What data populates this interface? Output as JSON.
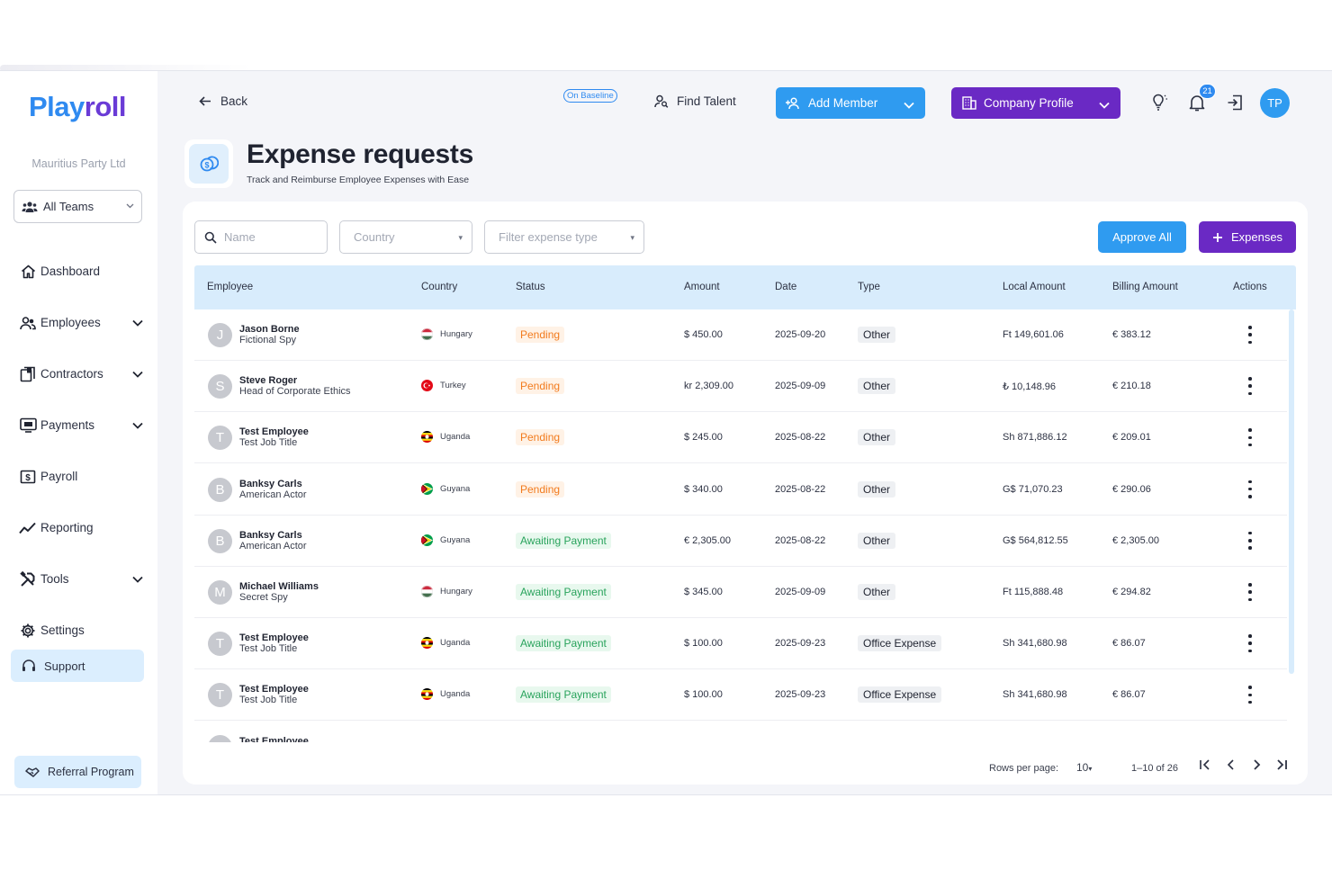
{
  "sidebar": {
    "logo_main": "Play",
    "logo_accent": "roll",
    "company": "Mauritius Party Ltd",
    "team_select": "All Teams",
    "items": [
      {
        "label": "Dashboard",
        "icon": "home-icon",
        "expandable": false
      },
      {
        "label": "Employees",
        "icon": "users-icon",
        "expandable": true
      },
      {
        "label": "Contractors",
        "icon": "contract-icon",
        "expandable": true
      },
      {
        "label": "Payments",
        "icon": "payment-icon",
        "expandable": true
      },
      {
        "label": "Payroll",
        "icon": "payroll-icon",
        "expandable": false
      },
      {
        "label": "Reporting",
        "icon": "chart-line-icon",
        "expandable": false
      },
      {
        "label": "Tools",
        "icon": "tools-icon",
        "expandable": true
      },
      {
        "label": "Settings",
        "icon": "gear-icon",
        "expandable": false
      }
    ],
    "support": "Support",
    "referral": "Referral Program"
  },
  "header": {
    "back": "Back",
    "baseline": "On Baseline",
    "find_talent": "Find Talent",
    "add_member": "Add Member",
    "company_profile": "Company Profile",
    "notifications": "21",
    "avatar": "TP"
  },
  "page": {
    "title": "Expense requests",
    "subtitle": "Track and Reimburse Employee Expenses with Ease"
  },
  "filters": {
    "name_placeholder": "Name",
    "country_placeholder": "Country",
    "type_placeholder": "Filter expense type",
    "approve_all": "Approve All",
    "add_expenses": "Expenses"
  },
  "table": {
    "columns": [
      "Employee",
      "Country",
      "Status",
      "Amount",
      "Date",
      "Type",
      "Local Amount",
      "Billing Amount",
      "Actions"
    ],
    "rows": [
      {
        "initial": "J",
        "name": "Jason Borne",
        "role": "Fictional Spy",
        "country": "Hungary",
        "status": "Pending",
        "amount": "$ 450.00",
        "date": "2025-09-20",
        "type": "Other",
        "local": "Ft 149,601.06",
        "billing": "€ 383.12"
      },
      {
        "initial": "S",
        "name": "Steve Roger",
        "role": "Head of Corporate Ethics",
        "country": "Turkey",
        "status": "Pending",
        "amount": "kr 2,309.00",
        "date": "2025-09-09",
        "type": "Other",
        "local": "₺ 10,148.96",
        "billing": "€ 210.18"
      },
      {
        "initial": "T",
        "name": "Test Employee",
        "role": "Test Job Title",
        "country": "Uganda",
        "status": "Pending",
        "amount": "$ 245.00",
        "date": "2025-08-22",
        "type": "Other",
        "local": "Sh 871,886.12",
        "billing": "€ 209.01"
      },
      {
        "initial": "B",
        "name": "Banksy Carls",
        "role": "American Actor",
        "country": "Guyana",
        "status": "Pending",
        "amount": "$ 340.00",
        "date": "2025-08-22",
        "type": "Other",
        "local": "G$ 71,070.23",
        "billing": "€ 290.06"
      },
      {
        "initial": "B",
        "name": "Banksy Carls",
        "role": "American Actor",
        "country": "Guyana",
        "status": "Awaiting Payment",
        "amount": "€ 2,305.00",
        "date": "2025-08-22",
        "type": "Other",
        "local": "G$ 564,812.55",
        "billing": "€ 2,305.00"
      },
      {
        "initial": "M",
        "name": "Michael Williams",
        "role": "Secret Spy",
        "country": "Hungary",
        "status": "Awaiting Payment",
        "amount": "$ 345.00",
        "date": "2025-09-09",
        "type": "Other",
        "local": "Ft 115,888.48",
        "billing": "€ 294.82"
      },
      {
        "initial": "T",
        "name": "Test Employee",
        "role": "Test Job Title",
        "country": "Uganda",
        "status": "Awaiting Payment",
        "amount": "$ 100.00",
        "date": "2025-09-23",
        "type": "Office Expense",
        "local": "Sh 341,680.98",
        "billing": "€ 86.07"
      },
      {
        "initial": "T",
        "name": "Test Employee",
        "role": "Test Job Title",
        "country": "Uganda",
        "status": "Awaiting Payment",
        "amount": "$ 100.00",
        "date": "2025-09-23",
        "type": "Office Expense",
        "local": "Sh 341,680.98",
        "billing": "€ 86.07"
      },
      {
        "initial": "T",
        "name": "Test Employee",
        "role": "",
        "country": "",
        "status": "",
        "amount": "",
        "date": "",
        "type": "",
        "local": "",
        "billing": ""
      }
    ]
  },
  "pagination": {
    "rows_label": "Rows per page:",
    "rows_value": "10",
    "range": "1–10 of 26"
  },
  "colors": {
    "primary_blue": "#2f9bf0",
    "purple": "#6a29c4",
    "pending": "#f27b1e",
    "awaiting": "#29a35c"
  }
}
